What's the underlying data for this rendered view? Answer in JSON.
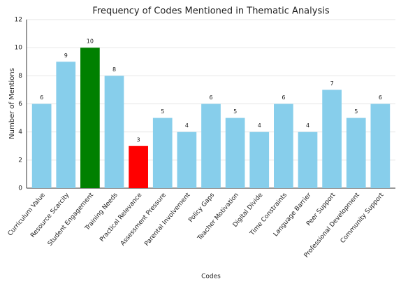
{
  "chart_data": {
    "type": "bar",
    "title": "Frequency of Codes Mentioned in Thematic Analysis",
    "x_label": "Codes",
    "y_label": "Number of Mentions",
    "categories": [
      "Curriculum Value",
      "Resource Scarcity",
      "Student Engagement",
      "Training Needs",
      "Practical Relevance",
      "Assessment Pressure",
      "Parental Involvement",
      "Policy Gaps",
      "Teacher Motivation",
      "Digital Divide",
      "Time Constraints",
      "Language Barrier",
      "Peer Support",
      "Professional Development",
      "Community Support"
    ],
    "values": [
      6,
      9,
      10,
      8,
      3,
      5,
      4,
      6,
      5,
      4,
      6,
      4,
      7,
      5,
      6
    ],
    "colors": [
      "#87ceeb",
      "#87ceeb",
      "#008000",
      "#87ceeb",
      "#ff0000",
      "#87ceeb",
      "#87ceeb",
      "#87ceeb",
      "#87ceeb",
      "#87ceeb",
      "#87ceeb",
      "#87ceeb",
      "#87ceeb",
      "#87ceeb",
      "#87ceeb"
    ],
    "ylim": [
      0,
      12
    ],
    "yticks": [
      0,
      2,
      4,
      6,
      8,
      10,
      12
    ],
    "grid": true
  }
}
